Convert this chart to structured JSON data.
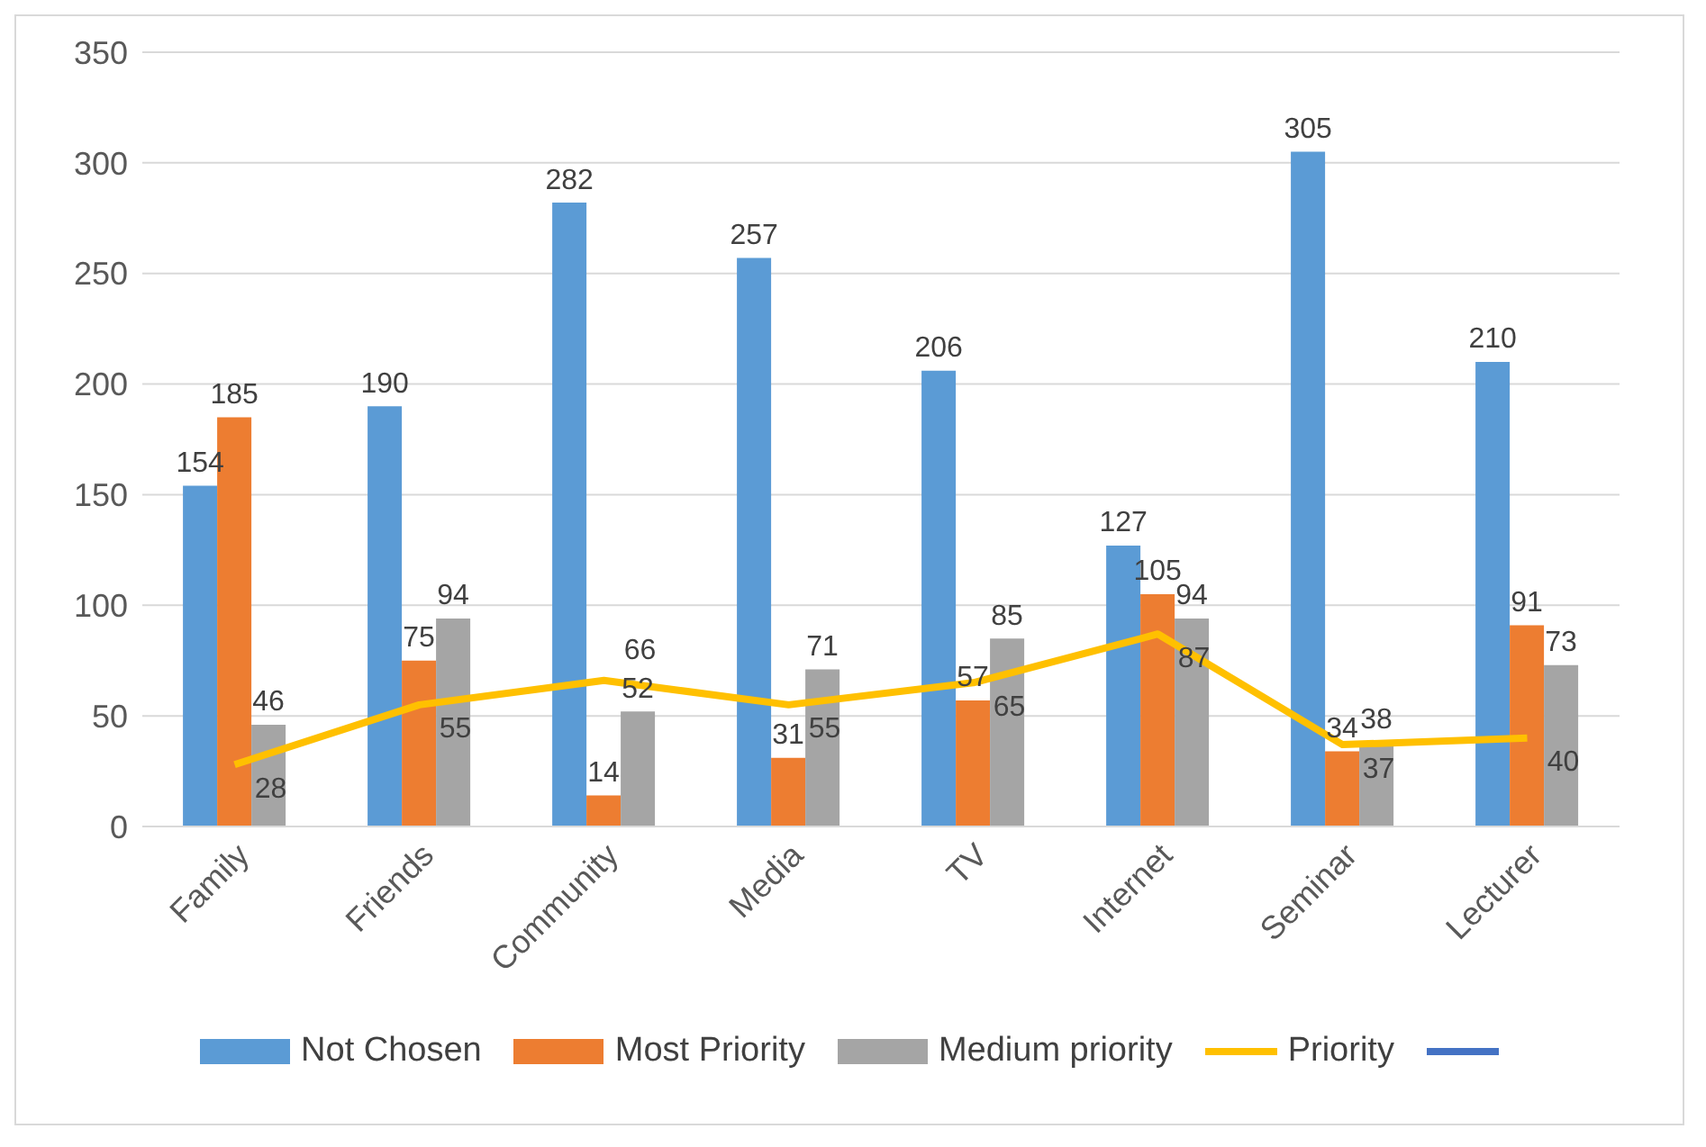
{
  "chart_data": {
    "type": "bar",
    "categories": [
      "Family",
      "Friends",
      "Community",
      "Media",
      "TV",
      "Internet",
      "Seminar",
      "Lecturer"
    ],
    "series": [
      {
        "name": "Not Chosen",
        "color": "#5b9bd5",
        "values": [
          154,
          190,
          282,
          257,
          206,
          127,
          305,
          210
        ]
      },
      {
        "name": "Most Priority",
        "color": "#ed7d31",
        "values": [
          185,
          75,
          14,
          31,
          57,
          105,
          34,
          91
        ]
      },
      {
        "name": "Medium priority",
        "color": "#a5a5a5",
        "values": [
          46,
          94,
          52,
          71,
          85,
          94,
          38,
          73
        ]
      },
      {
        "name": "Priority",
        "type": "line",
        "color": "#ffc000",
        "values": [
          28,
          55,
          66,
          55,
          65,
          87,
          37,
          40
        ]
      },
      {
        "type": "line",
        "color": "#4472c4",
        "values": [
          null,
          null,
          null,
          null,
          null,
          null,
          null,
          null
        ]
      }
    ],
    "ylim": [
      0,
      350
    ],
    "yticks": [
      0,
      50,
      100,
      150,
      200,
      250,
      300,
      350
    ],
    "grid": "y",
    "legend": "bottom",
    "data_labels": true,
    "marker": "none"
  }
}
